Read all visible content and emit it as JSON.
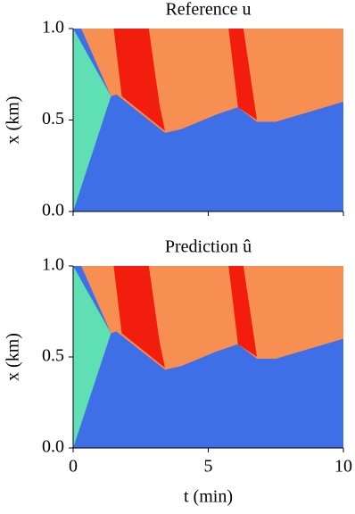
{
  "chart_data": [
    {
      "type": "heatmap",
      "title": "Reference u",
      "ylabel": "x (km)",
      "ylim": [
        0.0,
        1.0
      ],
      "yticks": [
        {
          "value": 0,
          "label": "0.0"
        },
        {
          "value": 0.5,
          "label": "0.5"
        },
        {
          "value": 1,
          "label": "1.0"
        }
      ],
      "xlim": [
        0,
        10
      ],
      "xticks": [
        0,
        5,
        10
      ]
    },
    {
      "type": "heatmap",
      "title": "Prediction û",
      "ylabel": "x (km)",
      "xlabel": "t (min)",
      "ylim": [
        0.0,
        1.0
      ],
      "yticks": [
        {
          "value": 0,
          "label": "0.0"
        },
        {
          "value": 0.5,
          "label": "0.5"
        },
        {
          "value": 1,
          "label": "1.0"
        }
      ],
      "xlim": [
        0,
        10
      ],
      "xticks": [
        0,
        5,
        10
      ]
    }
  ]
}
